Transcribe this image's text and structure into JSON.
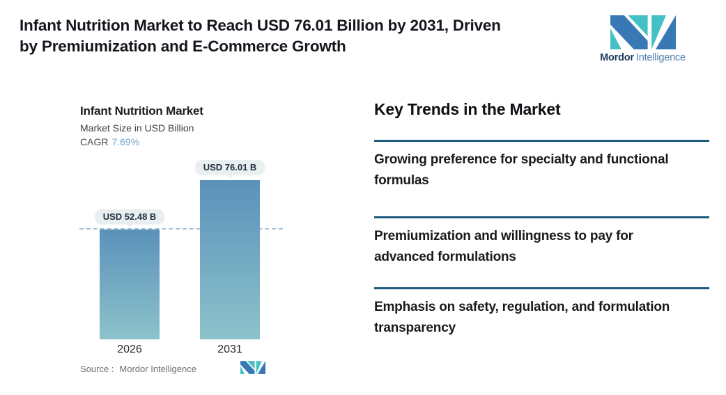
{
  "header": {
    "title_lines": [
      "Infant Nutrition Market to Reach USD 76.01 Billion by 2031, Driven",
      "by Premiumization and E-Commerce Growth"
    ],
    "brand": {
      "name_bold": "Mordor",
      "name_light": "Intelligence"
    }
  },
  "chart": {
    "title": "Infant Nutrition Market",
    "subtitle": "Market Size in USD Billion",
    "cagr_label": "CAGR",
    "cagr_value": "7.69%",
    "source_label": "Source :",
    "source_value": "Mordor Intelligence"
  },
  "chart_data": {
    "type": "bar",
    "title": "Infant Nutrition Market",
    "ylabel": "Market Size in USD Billion",
    "cagr": "7.69%",
    "categories": [
      "2026",
      "2031"
    ],
    "values": [
      52.48,
      76.01
    ],
    "value_labels": [
      "USD 52.48 B",
      "USD 76.01 B"
    ],
    "unit": "USD Billion",
    "reference_line": 52.48,
    "ylim": [
      0,
      80
    ],
    "grid": false,
    "legend": false,
    "bar_gradient_top": "#5b91ba",
    "bar_gradient_bottom": "#8cc3cb"
  },
  "trends": {
    "heading": "Key Trends in the Market",
    "items": [
      "Growing preference for specialty and functional formulas",
      "Premiumization and willingness to pay for advanced formulations",
      "Emphasis on safety, regulation, and formulation transparency"
    ]
  },
  "colors": {
    "accent_rule": "#1e5b7e",
    "dashed_color": "#a3c2d6",
    "pill_bg": "#e9eff1",
    "cagr_color": "#74a5cf",
    "bar_top": "#5b91ba",
    "bar_bottom": "#8cc3cb",
    "brand_blue": "#3878b4",
    "brand_teal": "#44c0c7"
  }
}
